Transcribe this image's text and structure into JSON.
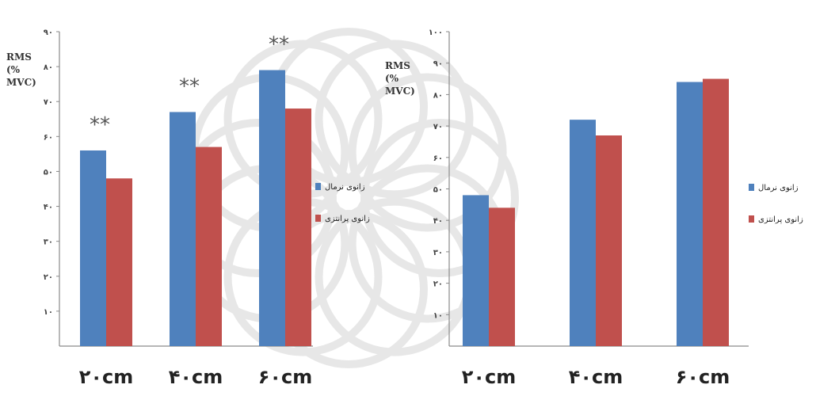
{
  "chart_data": [
    {
      "type": "bar",
      "ylabel": [
        "RMS",
        "(%",
        "MVC)"
      ],
      "categories": [
        "۲۰cm",
        "۴۰cm",
        "۶۰cm"
      ],
      "series": [
        {
          "name": "زانوی نرمال",
          "color": "#4f81bd",
          "values": [
            56,
            67,
            79
          ]
        },
        {
          "name": "زانوی پرانتزی",
          "color": "#c0504d",
          "values": [
            48,
            57,
            68
          ]
        }
      ],
      "ylim": [
        0,
        90
      ],
      "yticks": [
        {
          "v": 10,
          "label": "۱۰"
        },
        {
          "v": 20,
          "label": "۲۰"
        },
        {
          "v": 30,
          "label": "۳۰"
        },
        {
          "v": 40,
          "label": "۴۰"
        },
        {
          "v": 50,
          "label": "۵۰"
        },
        {
          "v": 60,
          "label": "۶۰"
        },
        {
          "v": 70,
          "label": "۷۰"
        },
        {
          "v": 80,
          "label": "۸۰"
        },
        {
          "v": 90,
          "label": "۹۰"
        }
      ],
      "annotations": [
        "**",
        "**",
        "**"
      ],
      "grid": false,
      "legend": "right"
    },
    {
      "type": "bar",
      "ylabel": [
        "RMS",
        "(%",
        "MVC)"
      ],
      "categories": [
        "۲۰cm",
        "۴۰cm",
        "۶۰cm"
      ],
      "series": [
        {
          "name": "زانوی نرمال",
          "color": "#4f81bd",
          "values": [
            48,
            72,
            84
          ]
        },
        {
          "name": "زانوی پرانتزی",
          "color": "#c0504d",
          "values": [
            44,
            67,
            85
          ]
        }
      ],
      "ylim": [
        0,
        100
      ],
      "yticks": [
        {
          "v": 10,
          "label": "۱۰"
        },
        {
          "v": 20,
          "label": "۲۰"
        },
        {
          "v": 30,
          "label": "۳۰"
        },
        {
          "v": 40,
          "label": "۴۰"
        },
        {
          "v": 50,
          "label": "۵۰"
        },
        {
          "v": 60,
          "label": "۶۰"
        },
        {
          "v": 70,
          "label": "۷۰"
        },
        {
          "v": 80,
          "label": "۸۰"
        },
        {
          "v": 90,
          "label": "۹۰"
        },
        {
          "v": 100,
          "label": "۱۰۰"
        }
      ],
      "annotations": [],
      "grid": false,
      "legend": "right"
    }
  ]
}
